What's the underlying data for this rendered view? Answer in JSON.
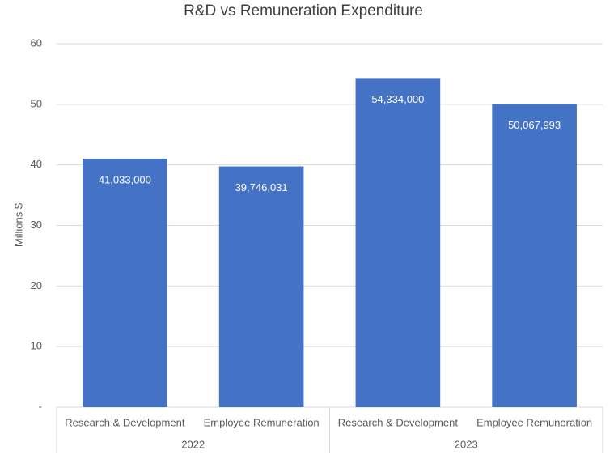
{
  "chart_data": {
    "type": "bar",
    "title": "R&D vs Remuneration Expenditure",
    "y_axis_label": "Millions $",
    "groups": [
      {
        "label": "2022",
        "categories": [
          "Research & Development",
          "Employee Remuneration"
        ]
      },
      {
        "label": "2023",
        "categories": [
          "Research & Development",
          "Employee Remuneration"
        ]
      }
    ],
    "values": [
      41.033,
      39.746031,
      54.334,
      50.067993
    ],
    "value_labels": [
      "41,033,000",
      "39,746,031",
      "54,334,000",
      "50,067,993"
    ],
    "color": "#4472c4",
    "ylim": [
      0,
      60
    ],
    "yticks": [
      {
        "value": 0,
        "label": "-"
      },
      10,
      20,
      30,
      40,
      50,
      60
    ],
    "grid": true
  }
}
